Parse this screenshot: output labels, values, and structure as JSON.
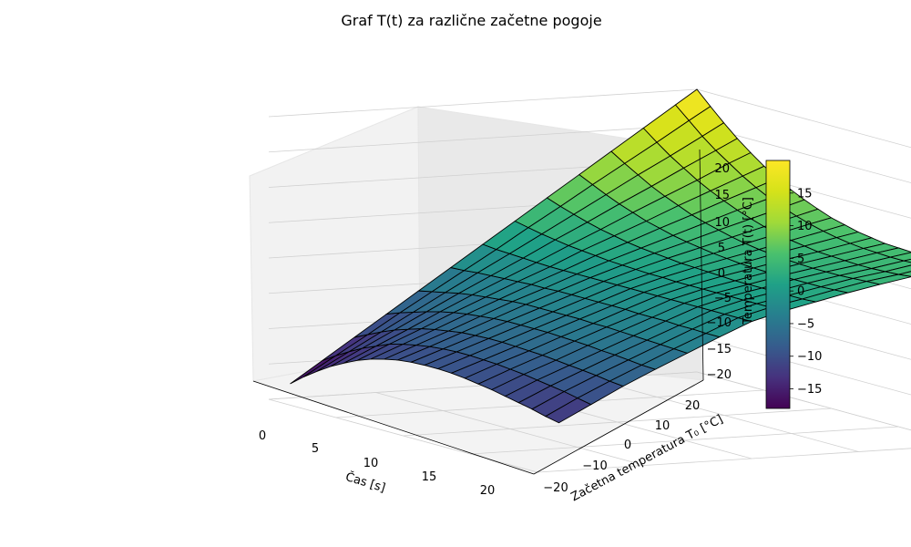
{
  "chart_data": {
    "type": "surface",
    "title": "Graf T(t) za različne začetne pogoje",
    "xlabel": "Čas [s]",
    "ylabel": "Začetna temperatura T₀ [°C]",
    "zlabel": "Temperatura T(t) [°C]",
    "x_ticks": [
      "0",
      "5",
      "10",
      "15",
      "20"
    ],
    "y_ticks": [
      "−20",
      "−10",
      "0",
      "10",
      "20"
    ],
    "z_ticks": [
      "−20",
      "−15",
      "−10",
      "−5",
      "0",
      "5",
      "10",
      "15",
      "20"
    ],
    "colorbar_ticks": [
      "−15",
      "−10",
      "−5",
      "0",
      "5",
      "10",
      "15"
    ],
    "xlim": [
      0,
      20
    ],
    "ylim": [
      -20,
      20
    ],
    "zlim": [
      -20,
      20
    ],
    "colorbar_range": [
      -18,
      20
    ],
    "colormap": "viridis",
    "grid": true,
    "surface": {
      "t": [
        0,
        1,
        2,
        3,
        4,
        5,
        6,
        7,
        8,
        9,
        10,
        11,
        12,
        13,
        14,
        15,
        16,
        17,
        18,
        19,
        20
      ],
      "T0": [
        -18,
        -15,
        -12,
        -9,
        -6,
        -3,
        0,
        3,
        6,
        9,
        12,
        15,
        18,
        20
      ],
      "T_surface": [
        [
          -18,
          -16.5,
          -15.2,
          -14.0,
          -13.0,
          -12.1,
          -11.4,
          -10.9,
          -10.5,
          -10.3,
          -10.2,
          -10.2,
          -10.3,
          -10.5,
          -10.8,
          -11.1,
          -11.5,
          -11.9,
          -12.3,
          -12.8,
          -13.2
        ],
        [
          -15,
          -13.8,
          -12.7,
          -11.7,
          -10.9,
          -10.1,
          -9.6,
          -9.2,
          -8.9,
          -8.7,
          -8.6,
          -8.6,
          -8.7,
          -8.8,
          -9.0,
          -9.2,
          -9.5,
          -9.8,
          -10.1,
          -10.5,
          -10.9
        ],
        [
          -12,
          -11.1,
          -10.2,
          -9.4,
          -8.8,
          -8.2,
          -7.8,
          -7.5,
          -7.2,
          -7.1,
          -7.0,
          -7.0,
          -7.1,
          -7.2,
          -7.3,
          -7.5,
          -7.7,
          -7.9,
          -8.1,
          -8.4,
          -8.6
        ],
        [
          -9,
          -8.3,
          -7.7,
          -7.1,
          -6.6,
          -6.2,
          -5.9,
          -5.7,
          -5.5,
          -5.4,
          -5.4,
          -5.4,
          -5.4,
          -5.5,
          -5.6,
          -5.7,
          -5.9,
          -6.0,
          -6.2,
          -6.4,
          -6.5
        ],
        [
          -6,
          -5.6,
          -5.2,
          -4.8,
          -4.5,
          -4.3,
          -4.1,
          -3.9,
          -3.8,
          -3.8,
          -3.8,
          -3.8,
          -3.8,
          -3.9,
          -3.9,
          -4.0,
          -4.1,
          -4.2,
          -4.3,
          -4.4,
          -4.5
        ],
        [
          -3,
          -2.9,
          -2.7,
          -2.6,
          -2.5,
          -2.4,
          -2.3,
          -2.3,
          -2.2,
          -2.2,
          -2.2,
          -2.2,
          -2.2,
          -2.2,
          -2.3,
          -2.3,
          -2.3,
          -2.4,
          -2.4,
          -2.5,
          -2.5
        ],
        [
          0,
          -0.2,
          -0.3,
          -0.4,
          -0.5,
          -0.6,
          -0.6,
          -0.6,
          -0.6,
          -0.6,
          -0.6,
          -0.6,
          -0.6,
          -0.6,
          -0.6,
          -0.6,
          -0.6,
          -0.6,
          -0.6,
          -0.6,
          -0.6
        ],
        [
          3,
          2.6,
          2.2,
          1.9,
          1.6,
          1.4,
          1.2,
          1.0,
          0.9,
          0.8,
          0.7,
          0.7,
          0.6,
          0.6,
          0.6,
          0.6,
          0.6,
          0.6,
          0.6,
          0.6,
          0.6
        ],
        [
          6,
          5.3,
          4.7,
          4.1,
          3.6,
          3.2,
          2.8,
          2.5,
          2.3,
          2.1,
          1.9,
          1.8,
          1.7,
          1.6,
          1.5,
          1.5,
          1.5,
          1.5,
          1.5,
          1.5,
          1.6
        ],
        [
          9,
          8.1,
          7.2,
          6.4,
          5.7,
          5.0,
          4.5,
          4.0,
          3.6,
          3.3,
          3.0,
          2.8,
          2.6,
          2.5,
          2.4,
          2.4,
          2.4,
          2.4,
          2.4,
          2.5,
          2.6
        ],
        [
          12,
          10.8,
          9.7,
          8.6,
          7.7,
          6.9,
          6.1,
          5.5,
          5.0,
          4.5,
          4.1,
          3.8,
          3.6,
          3.4,
          3.3,
          3.2,
          3.2,
          3.2,
          3.3,
          3.4,
          3.5
        ],
        [
          15,
          13.5,
          12.1,
          10.9,
          9.7,
          8.7,
          7.8,
          7.0,
          6.3,
          5.7,
          5.2,
          4.8,
          4.5,
          4.2,
          4.1,
          4.0,
          3.9,
          3.9,
          4.0,
          4.1,
          4.3
        ],
        [
          18,
          16.3,
          14.6,
          13.1,
          11.8,
          10.5,
          9.4,
          8.4,
          7.6,
          6.9,
          6.3,
          5.8,
          5.4,
          5.1,
          4.9,
          4.8,
          4.7,
          4.7,
          4.8,
          4.9,
          5.1
        ],
        [
          20,
          18.1,
          16.3,
          14.6,
          13.1,
          11.7,
          10.5,
          9.4,
          8.5,
          7.7,
          7.0,
          6.5,
          6.0,
          5.7,
          5.4,
          5.3,
          5.2,
          5.2,
          5.3,
          5.4,
          5.6
        ]
      ]
    }
  }
}
